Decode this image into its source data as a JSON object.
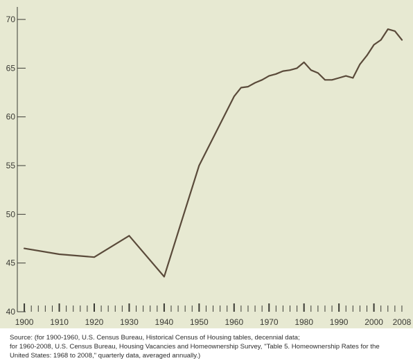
{
  "chart_data": {
    "type": "line",
    "title": "",
    "xlabel": "",
    "ylabel": "",
    "xlim": [
      1898,
      2009
    ],
    "ylim": [
      40,
      71
    ],
    "grid": false,
    "legend": "none",
    "x_ticks": [
      "1900",
      "1910",
      "1920",
      "1930",
      "1940",
      "1950",
      "1960",
      "1970",
      "1980",
      "1990",
      "2000",
      "2008"
    ],
    "y_ticks": [
      "40",
      "45",
      "50",
      "55",
      "60",
      "65",
      "70"
    ],
    "series": [
      {
        "color": "#5a4a3a",
        "x": [
          1900,
          1910,
          1920,
          1930,
          1940,
          1950,
          1960,
          1962,
          1964,
          1966,
          1968,
          1970,
          1972,
          1974,
          1976,
          1978,
          1980,
          1982,
          1984,
          1986,
          1988,
          1990,
          1992,
          1994,
          1996,
          1998,
          2000,
          2002,
          2004,
          2006,
          2008
        ],
        "y": [
          46.5,
          45.9,
          45.6,
          47.8,
          43.6,
          55.0,
          62.1,
          63.0,
          63.1,
          63.5,
          63.8,
          64.2,
          64.4,
          64.7,
          64.8,
          65.0,
          65.6,
          64.8,
          64.5,
          63.8,
          63.8,
          64.0,
          64.2,
          64.0,
          65.4,
          66.3,
          67.4,
          67.9,
          69.0,
          68.8,
          67.9
        ]
      }
    ]
  },
  "colors": {
    "panel_background": "#e7e9d2",
    "axis": "#3a3a34",
    "line": "#5a4a3a"
  },
  "source": {
    "line1": "Source: (for 1900-1960, U.S. Census Bureau, Historical Census of Housing tables, decennial data;",
    "line2": "for 1960-2008, U.S. Census Bureau, Housing Vacancies and Homeownership Survey,  \"Table 5. Homeownership Rates for the",
    "line3": "United States:  1968 to 2008,\" quarterly data, averaged annually.)"
  }
}
